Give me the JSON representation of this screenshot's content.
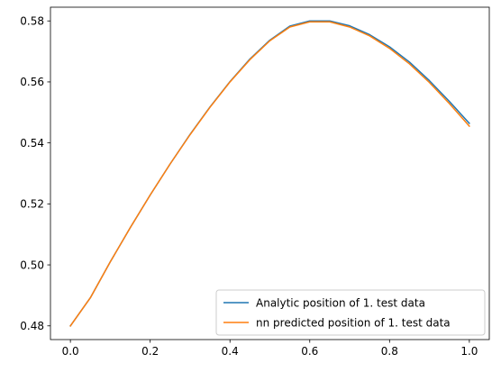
{
  "chart_data": {
    "type": "line",
    "title": "",
    "xlabel": "",
    "ylabel": "",
    "xlim": [
      -0.05,
      1.05
    ],
    "ylim": [
      0.4755,
      0.5845
    ],
    "xticks": [
      0.0,
      0.2,
      0.4,
      0.6,
      0.8,
      1.0
    ],
    "xtick_labels": [
      "0.0",
      "0.2",
      "0.4",
      "0.6",
      "0.8",
      "1.0"
    ],
    "yticks": [
      0.48,
      0.5,
      0.52,
      0.54,
      0.56,
      0.58
    ],
    "ytick_labels": [
      "0.48",
      "0.50",
      "0.52",
      "0.54",
      "0.56",
      "0.58"
    ],
    "grid": false,
    "legend_position": "lower-right",
    "series": [
      {
        "name": "Analytic position of 1. test data",
        "color": "#1f77b4",
        "x": [
          0.0,
          0.05,
          0.1,
          0.15,
          0.2,
          0.25,
          0.3,
          0.35,
          0.4,
          0.45,
          0.5,
          0.55,
          0.6,
          0.65,
          0.7,
          0.75,
          0.8,
          0.85,
          0.9,
          0.95,
          1.0
        ],
        "y": [
          0.48,
          0.4892,
          0.501,
          0.5122,
          0.5229,
          0.5331,
          0.5428,
          0.5518,
          0.5601,
          0.5675,
          0.5737,
          0.5783,
          0.58,
          0.58,
          0.5784,
          0.5755,
          0.5715,
          0.5665,
          0.5604,
          0.5536,
          0.5464
        ]
      },
      {
        "name": "nn predicted position of 1. test data",
        "color": "#ff7f0e",
        "x": [
          0.0,
          0.05,
          0.1,
          0.15,
          0.2,
          0.25,
          0.3,
          0.35,
          0.4,
          0.45,
          0.5,
          0.55,
          0.6,
          0.65,
          0.7,
          0.75,
          0.8,
          0.85,
          0.9,
          0.95,
          1.0
        ],
        "y": [
          0.48,
          0.4892,
          0.501,
          0.5122,
          0.5229,
          0.5331,
          0.5427,
          0.5517,
          0.56,
          0.5673,
          0.5735,
          0.578,
          0.5797,
          0.5797,
          0.578,
          0.5751,
          0.571,
          0.5659,
          0.5598,
          0.5529,
          0.5455
        ]
      }
    ]
  }
}
